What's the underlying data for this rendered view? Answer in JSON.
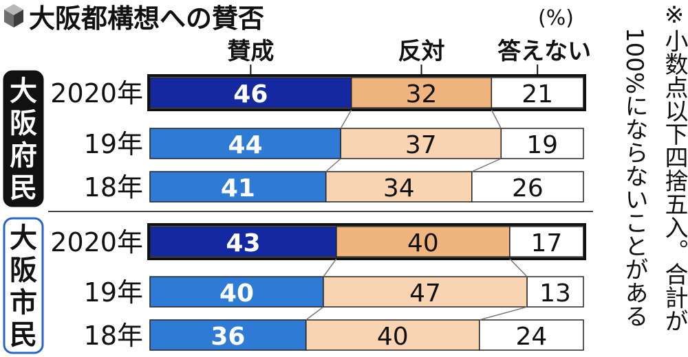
{
  "title": "大阪都構想への賛否",
  "unit": "(%)",
  "note_col1": "※小数点以下四捨五入。合計が",
  "note_col2": "100%にならないことがある",
  "colors": {
    "yes_current": "#1428a0",
    "yes_past": "#2e7bd6",
    "no_current": "#f0b47e",
    "no_past": "#f8d4b2",
    "dk": "#ffffff",
    "frame": "#111111",
    "group_pref": "#111111",
    "group_city_border": "#2a64c8"
  },
  "chart_data": {
    "type": "bar",
    "stacked": true,
    "orientation": "horizontal",
    "legend": [
      "賛成",
      "反対",
      "答えない"
    ],
    "groups": [
      {
        "name": "大阪府民",
        "rows": [
          {
            "year": "2020年",
            "values": [
              46,
              32,
              21
            ]
          },
          {
            "year": "19年",
            "values": [
              44,
              37,
              19
            ]
          },
          {
            "year": "18年",
            "values": [
              41,
              34,
              26
            ]
          }
        ]
      },
      {
        "name": "大阪市民",
        "rows": [
          {
            "year": "2020年",
            "values": [
              43,
              40,
              17
            ]
          },
          {
            "year": "19年",
            "values": [
              40,
              47,
              13
            ]
          },
          {
            "year": "18年",
            "values": [
              36,
              40,
              24
            ]
          }
        ]
      }
    ]
  }
}
